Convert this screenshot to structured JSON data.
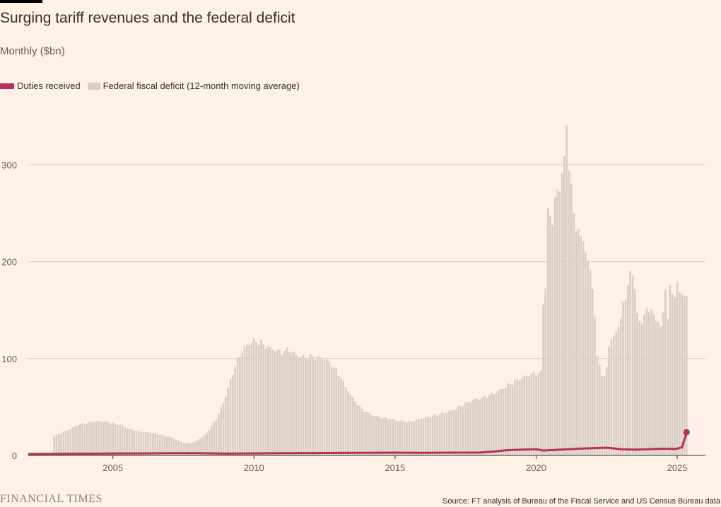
{
  "chart_data": {
    "type": "bar",
    "title": "Surging tariff revenues and the federal deficit",
    "subtitle": "Monthly ($bn)",
    "xlabel": "",
    "ylabel": "",
    "xlim": [
      2002,
      2026
    ],
    "ylim": [
      0,
      350
    ],
    "x_ticks": [
      2005,
      2010,
      2015,
      2020,
      2025
    ],
    "y_ticks": [
      0,
      100,
      200,
      300
    ],
    "grid": "horizontal",
    "legend_placement": "top-left",
    "colors": {
      "duties": "#b5305d",
      "deficit": "#dacdc4",
      "background": "#fff1e5",
      "grid": "#d8cec5"
    },
    "legend": [
      {
        "label": "Duties received",
        "kind": "line"
      },
      {
        "label": "Federal fiscal deficit (12-month moving average)",
        "kind": "bar"
      }
    ],
    "series": [
      {
        "name": "Federal fiscal deficit (12-month moving average)",
        "type": "bar",
        "points": [
          [
            2002.92,
            20
          ],
          [
            2003.0,
            21
          ],
          [
            2003.25,
            24
          ],
          [
            2003.5,
            27
          ],
          [
            2003.75,
            31
          ],
          [
            2004.0,
            33
          ],
          [
            2004.25,
            35
          ],
          [
            2004.5,
            36
          ],
          [
            2004.75,
            35
          ],
          [
            2005.0,
            33
          ],
          [
            2005.25,
            31
          ],
          [
            2005.5,
            28
          ],
          [
            2005.75,
            26
          ],
          [
            2006.0,
            25
          ],
          [
            2006.25,
            24
          ],
          [
            2006.5,
            23
          ],
          [
            2006.75,
            21
          ],
          [
            2007.0,
            19
          ],
          [
            2007.25,
            16
          ],
          [
            2007.5,
            13
          ],
          [
            2007.75,
            13
          ],
          [
            2008.0,
            16
          ],
          [
            2008.25,
            21
          ],
          [
            2008.5,
            30
          ],
          [
            2008.75,
            42
          ],
          [
            2009.0,
            60
          ],
          [
            2009.25,
            85
          ],
          [
            2009.5,
            105
          ],
          [
            2009.75,
            116
          ],
          [
            2010.0,
            120
          ],
          [
            2010.25,
            116
          ],
          [
            2010.5,
            110
          ],
          [
            2010.75,
            107
          ],
          [
            2011.0,
            106
          ],
          [
            2011.25,
            110
          ],
          [
            2011.5,
            105
          ],
          [
            2011.75,
            103
          ],
          [
            2012.0,
            102
          ],
          [
            2012.25,
            100
          ],
          [
            2012.5,
            98
          ],
          [
            2012.75,
            93
          ],
          [
            2013.0,
            85
          ],
          [
            2013.25,
            72
          ],
          [
            2013.5,
            60
          ],
          [
            2013.75,
            50
          ],
          [
            2014.0,
            44
          ],
          [
            2014.25,
            40
          ],
          [
            2014.5,
            39
          ],
          [
            2014.75,
            38
          ],
          [
            2015.0,
            37
          ],
          [
            2015.25,
            36
          ],
          [
            2015.5,
            35
          ],
          [
            2015.75,
            36
          ],
          [
            2016.0,
            38
          ],
          [
            2016.25,
            40
          ],
          [
            2016.5,
            42
          ],
          [
            2016.75,
            45
          ],
          [
            2017.0,
            47
          ],
          [
            2017.25,
            50
          ],
          [
            2017.5,
            53
          ],
          [
            2017.75,
            56
          ],
          [
            2018.0,
            58
          ],
          [
            2018.25,
            61
          ],
          [
            2018.5,
            65
          ],
          [
            2018.75,
            69
          ],
          [
            2019.0,
            73
          ],
          [
            2019.25,
            76
          ],
          [
            2019.5,
            79
          ],
          [
            2019.75,
            82
          ],
          [
            2020.0,
            85
          ],
          [
            2020.17,
            87
          ],
          [
            2020.25,
            160
          ],
          [
            2020.33,
            175
          ],
          [
            2020.42,
            248
          ],
          [
            2020.58,
            245
          ],
          [
            2020.67,
            260
          ],
          [
            2020.75,
            270
          ],
          [
            2020.83,
            278
          ],
          [
            2020.92,
            290
          ],
          [
            2021.0,
            300
          ],
          [
            2021.08,
            340
          ],
          [
            2021.17,
            300
          ],
          [
            2021.25,
            275
          ],
          [
            2021.42,
            238
          ],
          [
            2021.5,
            235
          ],
          [
            2021.58,
            220
          ],
          [
            2021.67,
            225
          ],
          [
            2021.75,
            215
          ],
          [
            2021.92,
            190
          ],
          [
            2022.08,
            145
          ],
          [
            2022.17,
            100
          ],
          [
            2022.33,
            85
          ],
          [
            2022.42,
            80
          ],
          [
            2022.5,
            90
          ],
          [
            2022.58,
            115
          ],
          [
            2022.75,
            120
          ],
          [
            2022.92,
            135
          ],
          [
            2023.08,
            155
          ],
          [
            2023.17,
            165
          ],
          [
            2023.33,
            185
          ],
          [
            2023.42,
            190
          ],
          [
            2023.58,
            145
          ],
          [
            2023.75,
            140
          ],
          [
            2023.92,
            148
          ],
          [
            2024.0,
            150
          ],
          [
            2024.17,
            142
          ],
          [
            2024.25,
            137
          ],
          [
            2024.42,
            132
          ],
          [
            2024.58,
            172
          ],
          [
            2024.67,
            143
          ],
          [
            2024.75,
            172
          ],
          [
            2024.92,
            168
          ],
          [
            2025.0,
            178
          ],
          [
            2025.17,
            170
          ],
          [
            2025.25,
            168
          ],
          [
            2025.33,
            165
          ]
        ]
      },
      {
        "name": "Duties received",
        "type": "line",
        "points": [
          [
            2002.0,
            1.5
          ],
          [
            2003.0,
            1.7
          ],
          [
            2004.0,
            1.8
          ],
          [
            2005.0,
            2.0
          ],
          [
            2006.0,
            2.1
          ],
          [
            2007.0,
            2.3
          ],
          [
            2008.0,
            2.4
          ],
          [
            2009.0,
            1.9
          ],
          [
            2010.0,
            2.1
          ],
          [
            2011.0,
            2.4
          ],
          [
            2012.0,
            2.5
          ],
          [
            2013.0,
            2.6
          ],
          [
            2014.0,
            2.8
          ],
          [
            2015.0,
            2.9
          ],
          [
            2016.0,
            2.8
          ],
          [
            2017.0,
            2.9
          ],
          [
            2018.0,
            3.0
          ],
          [
            2018.5,
            4.0
          ],
          [
            2019.0,
            5.5
          ],
          [
            2019.5,
            6.0
          ],
          [
            2020.0,
            6.5
          ],
          [
            2020.25,
            5.0
          ],
          [
            2020.5,
            5.5
          ],
          [
            2021.0,
            6.2
          ],
          [
            2021.5,
            7.0
          ],
          [
            2022.0,
            7.5
          ],
          [
            2022.5,
            8.0
          ],
          [
            2023.0,
            6.5
          ],
          [
            2023.5,
            6.0
          ],
          [
            2024.0,
            6.5
          ],
          [
            2024.5,
            7.0
          ],
          [
            2024.92,
            6.8
          ],
          [
            2025.0,
            7.0
          ],
          [
            2025.17,
            8.5
          ],
          [
            2025.25,
            16.0
          ],
          [
            2025.33,
            24.0
          ]
        ],
        "last_point_marked": true
      }
    ]
  },
  "source": "Source: FT analysis of Bureau of the Fiscal Service and US Census Bureau data",
  "brand": "FINANCIAL TIMES"
}
